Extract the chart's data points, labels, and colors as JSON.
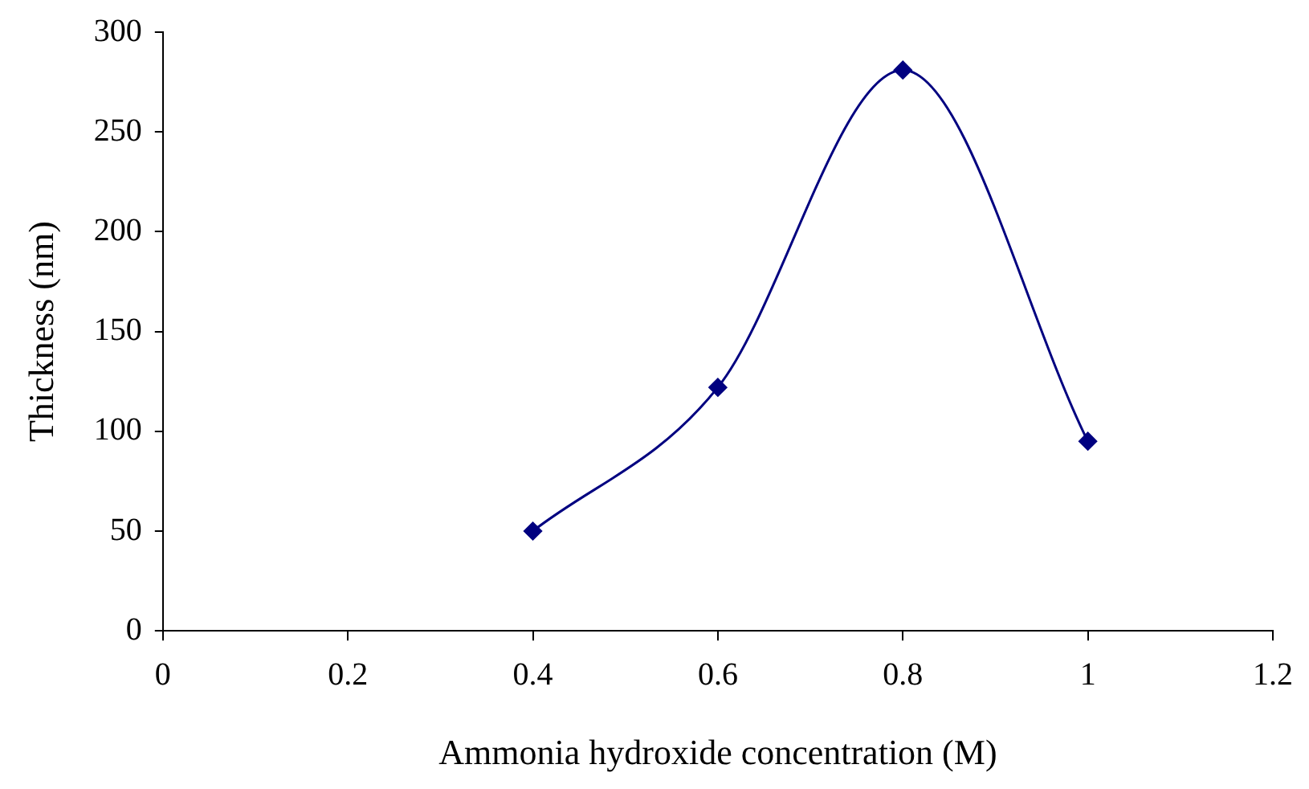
{
  "chart_data": {
    "type": "line",
    "xlabel": "Ammonia hydroxide concentration (M)",
    "ylabel": "Thickness (nm)",
    "x": [
      0.4,
      0.6,
      0.8,
      1.0
    ],
    "series": [
      {
        "color": "#000080",
        "values": [
          50,
          122,
          281,
          95
        ]
      }
    ],
    "xlim": [
      0,
      1.2
    ],
    "xticks": [
      0,
      0.2,
      0.4,
      0.6,
      0.8,
      1,
      1.2
    ],
    "ylim": [
      0,
      300
    ],
    "yticks": [
      0,
      50,
      100,
      150,
      200,
      250,
      300
    ],
    "grid": false,
    "legend": false,
    "marker": "diamond",
    "line_style": "solid"
  }
}
